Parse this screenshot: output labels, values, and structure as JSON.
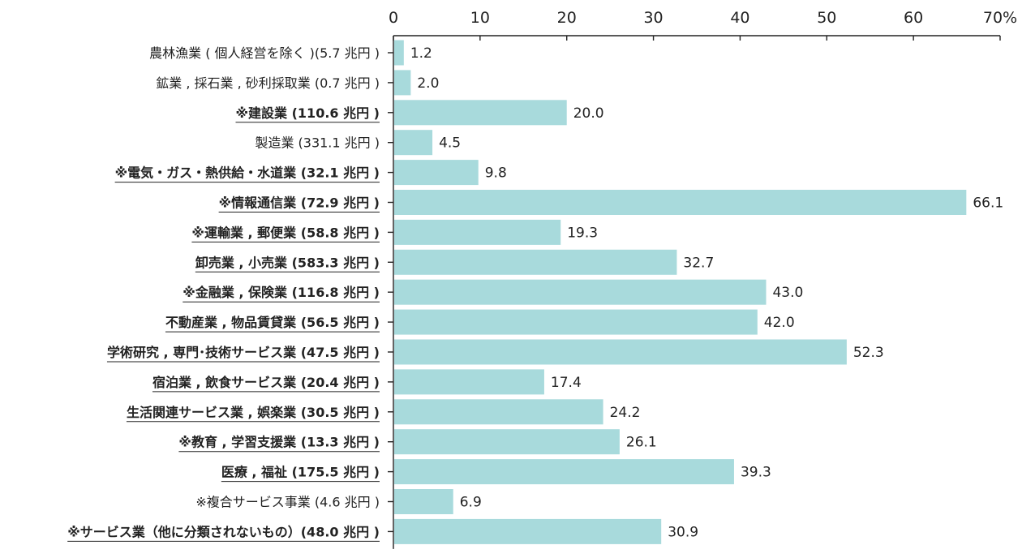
{
  "chart_data": {
    "type": "bar",
    "orientation": "horizontal",
    "xlim": [
      0,
      70
    ],
    "xticks": [
      "0",
      "10",
      "20",
      "30",
      "40",
      "50",
      "60",
      "70%"
    ],
    "bar_color": "#a8dadc",
    "grid": false,
    "categories": [
      {
        "label": "農林漁業 ( 個人経営を除く )(5.7 兆円 )",
        "underlined": false,
        "bold": false
      },
      {
        "label": "鉱業 , 採石業 , 砂利採取業 (0.7 兆円 )",
        "underlined": false,
        "bold": false
      },
      {
        "label": "※建設業 (110.6 兆円 )",
        "underlined": true,
        "bold": true
      },
      {
        "label": "製造業 (331.1 兆円 )",
        "underlined": false,
        "bold": false
      },
      {
        "label": "※電気・ガス・熱供給・水道業 (32.1 兆円 )",
        "underlined": true,
        "bold": true
      },
      {
        "label": "※情報通信業 (72.9 兆円 )",
        "underlined": true,
        "bold": true
      },
      {
        "label": "※運輸業 , 郵便業 (58.8 兆円 )",
        "underlined": true,
        "bold": true
      },
      {
        "label": "卸売業 , 小売業 (583.3 兆円 )",
        "underlined": true,
        "bold": true
      },
      {
        "label": "※金融業 , 保険業 (116.8 兆円 )",
        "underlined": true,
        "bold": true
      },
      {
        "label": "不動産業 , 物品賃貸業 (56.5 兆円 )",
        "underlined": true,
        "bold": true
      },
      {
        "label": "学術研究 , 専門･技術サービス業 (47.5 兆円 )",
        "underlined": true,
        "bold": true
      },
      {
        "label": "宿泊業 , 飲食サービス業 (20.4 兆円 )",
        "underlined": true,
        "bold": true
      },
      {
        "label": "生活関連サービス業 , 娯楽業 (30.5 兆円 )",
        "underlined": true,
        "bold": true
      },
      {
        "label": "※教育 , 学習支援業 (13.3 兆円 )",
        "underlined": true,
        "bold": true
      },
      {
        "label": "医療 , 福祉 (175.5 兆円 )",
        "underlined": true,
        "bold": true
      },
      {
        "label": "※複合サービス事業 (4.6 兆円 )",
        "underlined": false,
        "bold": false
      },
      {
        "label": "※サービス業（他に分類されないもの）(48.0 兆円 )",
        "underlined": true,
        "bold": true
      }
    ],
    "values": [
      1.2,
      2.0,
      20.0,
      4.5,
      9.8,
      66.1,
      19.3,
      32.7,
      43.0,
      42.0,
      52.3,
      17.4,
      24.2,
      26.1,
      39.3,
      6.9,
      30.9
    ],
    "value_labels": [
      "1.2",
      "2.0",
      "20.0",
      "4.5",
      "9.8",
      "66.1",
      "19.3",
      "32.7",
      "43.0",
      "42.0",
      "52.3",
      "17.4",
      "24.2",
      "26.1",
      "39.3",
      "6.9",
      "30.9"
    ]
  }
}
